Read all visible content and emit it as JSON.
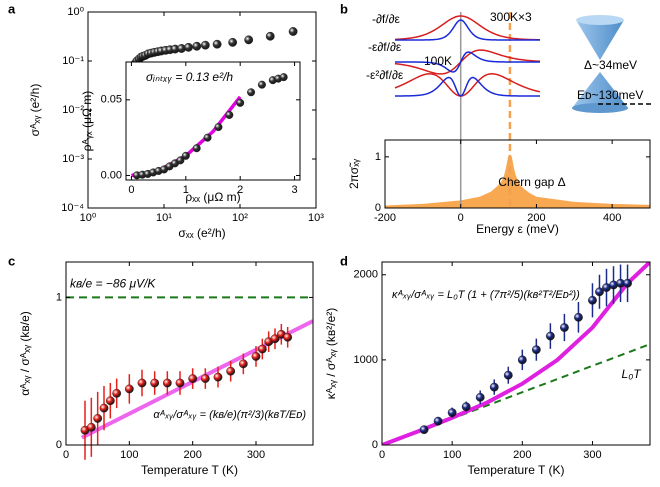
{
  "chart_data": [
    {
      "type": "scatter",
      "panel": "a",
      "x_label": "σₓₓ (e²/h)",
      "y_label": "σᴬₓᵧ (e²/h)",
      "log_x": true,
      "log_y": true,
      "xlim": [
        1,
        1000
      ],
      "ylim": [
        0.0001,
        1
      ],
      "xticks": [
        {
          "value": 1,
          "label": "10⁰"
        },
        {
          "value": 10,
          "label": "10¹"
        },
        {
          "value": 100,
          "label": "10²"
        },
        {
          "value": 1000,
          "label": "10³"
        }
      ],
      "yticks": [
        {
          "value": 0.0001,
          "label": "10⁻⁴"
        },
        {
          "value": 0.001,
          "label": "10⁻³"
        },
        {
          "value": 0.01,
          "label": "10⁻²"
        },
        {
          "value": 0.1,
          "label": "10⁻¹"
        },
        {
          "value": 1,
          "label": "10⁰"
        }
      ],
      "series": [
        {
          "kind": "points",
          "color": "#333333",
          "x": [
            4.2,
            4.4,
            4.7,
            5,
            5.3,
            5.7,
            6.2,
            6.8,
            7.5,
            8.3,
            9.2,
            10.5,
            12,
            14,
            17,
            21,
            27,
            35,
            50,
            80,
            130,
            250,
            500
          ],
          "values": [
            0.09,
            0.1,
            0.11,
            0.12,
            0.125,
            0.13,
            0.14,
            0.145,
            0.15,
            0.155,
            0.16,
            0.165,
            0.17,
            0.175,
            0.18,
            0.19,
            0.2,
            0.21,
            0.22,
            0.24,
            0.27,
            0.32,
            0.4
          ]
        }
      ]
    },
    {
      "type": "scatter",
      "x_label": "ρₓₓ (μΩ m)",
      "y_label": "ρᴬᵧₓ (μΩ m)",
      "xlim": [
        -0.1,
        3.1
      ],
      "ylim": [
        -0.003,
        0.075
      ],
      "xticks": [
        0,
        1,
        2,
        3
      ],
      "yticks": [
        {
          "value": 0,
          "label": "0.00"
        },
        0.05
      ],
      "annotation": "σᵢₙₜₓᵧ = 0.13 e²/h",
      "series": [
        {
          "kind": "line",
          "color": "#e000e0",
          "x": [
            0,
            0.5,
            1,
            1.5,
            2
          ],
          "values": [
            0,
            0.0033,
            0.013,
            0.029,
            0.052
          ]
        },
        {
          "kind": "points",
          "color": "#333333",
          "x": [
            0.1,
            0.2,
            0.3,
            0.4,
            0.5,
            0.6,
            0.7,
            0.8,
            0.9,
            1.0,
            1.2,
            1.4,
            1.6,
            1.8,
            2.0,
            2.2,
            2.4,
            2.6,
            2.7,
            2.8
          ],
          "values": [
            0.0001,
            0.0005,
            0.001,
            0.002,
            0.003,
            0.004,
            0.006,
            0.008,
            0.01,
            0.013,
            0.018,
            0.025,
            0.032,
            0.04,
            0.048,
            0.055,
            0.06,
            0.063,
            0.064,
            0.065
          ]
        }
      ]
    },
    {
      "type": "area",
      "panel": "b",
      "x_label": "Energy ε (meV)",
      "y_label": "2πσ̃ₓᵧ",
      "xlim": [
        -200,
        500
      ],
      "ylim": [
        0,
        1.33
      ],
      "xticks": [
        -200,
        0,
        200,
        400
      ],
      "yticks": [
        0,
        1
      ],
      "annotation": "Chern gap Δ",
      "schematic_labels": [
        "-∂f/∂ε",
        "-ε∂f/∂ε",
        "-ε²∂f/∂ε",
        "300K×3",
        "100K",
        "Δ~34meV",
        "Eᴅ~130meV"
      ],
      "ref_lines": [
        {
          "x": 0,
          "color": "#999999"
        },
        {
          "x": 130,
          "color": "#f5a050",
          "dashed": true
        }
      ],
      "series": [
        {
          "kind": "area",
          "color": "#f7a850",
          "x": [
            -200,
            -100,
            0,
            50,
            80,
            100,
            110,
            115,
            120,
            125,
            130,
            135,
            140,
            145,
            150,
            160,
            180,
            200,
            300,
            400,
            500
          ],
          "values": [
            0.05,
            0.08,
            0.15,
            0.22,
            0.32,
            0.45,
            0.55,
            0.65,
            0.8,
            1.0,
            1.05,
            1.0,
            0.8,
            0.65,
            0.55,
            0.42,
            0.3,
            0.22,
            0.12,
            0.08,
            0.06
          ]
        }
      ]
    },
    {
      "type": "scatter",
      "panel": "c",
      "x_label": "Temperature T (K)",
      "y_label": "αᴬₓᵧ / σᴬₓᵧ (kʙ/e)",
      "xlim": [
        0,
        390
      ],
      "ylim": [
        0,
        1.24
      ],
      "xticks": [
        0,
        100,
        200,
        300
      ],
      "yticks": [
        0,
        1
      ],
      "hline": {
        "value": 1,
        "label": "kʙ/e = −86 μV/K",
        "color": "#1a7a1a"
      },
      "formula": "αᴬₓᵧ/σᴬₓᵧ = (kʙ/e)(π²/3)(kʙT/Eᴅ)",
      "series": [
        {
          "kind": "line",
          "color": "#ee66ee",
          "x": [
            25,
            390
          ],
          "values": [
            0.05,
            0.84
          ]
        },
        {
          "kind": "points",
          "color": "#e8201a",
          "x": [
            30,
            40,
            50,
            60,
            70,
            80,
            100,
            120,
            140,
            160,
            180,
            200,
            220,
            240,
            260,
            280,
            300,
            310,
            320,
            330,
            340,
            350
          ],
          "values": [
            0.1,
            0.12,
            0.18,
            0.25,
            0.3,
            0.35,
            0.38,
            0.42,
            0.42,
            0.42,
            0.42,
            0.45,
            0.45,
            0.46,
            0.5,
            0.55,
            0.6,
            0.65,
            0.7,
            0.72,
            0.75,
            0.73
          ],
          "errors": [
            0.2,
            0.2,
            0.18,
            0.15,
            0.12,
            0.1,
            0.1,
            0.09,
            0.08,
            0.08,
            0.08,
            0.07,
            0.07,
            0.07,
            0.07,
            0.07,
            0.07,
            0.07,
            0.07,
            0.07,
            0.07,
            0.07
          ]
        }
      ]
    },
    {
      "type": "scatter",
      "panel": "d",
      "x_label": "Temperature T (K)",
      "y_label": "κᴬₓᵧ / σᴬₓᵧ (kʙ²/e²)",
      "xlim": [
        0,
        382
      ],
      "ylim": [
        0,
        2150
      ],
      "xticks": [
        0,
        100,
        200,
        300
      ],
      "yticks": [
        0,
        1000,
        2000
      ],
      "formula": "κᴬₓᵧ/σᴬₓᵧ = L₀T (1 + (7π²/5)(kʙ²T²/Eᴅ²))",
      "series": [
        {
          "kind": "line",
          "color": "#1a7a1a",
          "dashed": true,
          "label": "L₀T",
          "x": [
            0,
            50,
            100,
            150,
            200,
            250,
            300,
            350,
            382
          ],
          "values": [
            0,
            155,
            310,
            465,
            620,
            775,
            930,
            1085,
            1185
          ]
        },
        {
          "kind": "line",
          "color": "#e020e0",
          "x": [
            0,
            50,
            100,
            150,
            200,
            250,
            300,
            350,
            382
          ],
          "values": [
            0,
            155,
            320,
            500,
            720,
            1000,
            1380,
            1900,
            2150
          ]
        },
        {
          "kind": "points",
          "color": "#1c2a8a",
          "x": [
            60,
            80,
            100,
            120,
            140,
            160,
            180,
            200,
            220,
            240,
            260,
            280,
            300,
            310,
            320,
            330,
            340,
            350
          ],
          "values": [
            180,
            280,
            380,
            450,
            560,
            680,
            820,
            1000,
            1120,
            1280,
            1380,
            1500,
            1700,
            1800,
            1850,
            1880,
            1900,
            1900
          ],
          "errors": [
            40,
            50,
            60,
            60,
            80,
            90,
            100,
            120,
            130,
            150,
            160,
            180,
            200,
            200,
            220,
            220,
            220,
            220
          ]
        }
      ]
    }
  ]
}
